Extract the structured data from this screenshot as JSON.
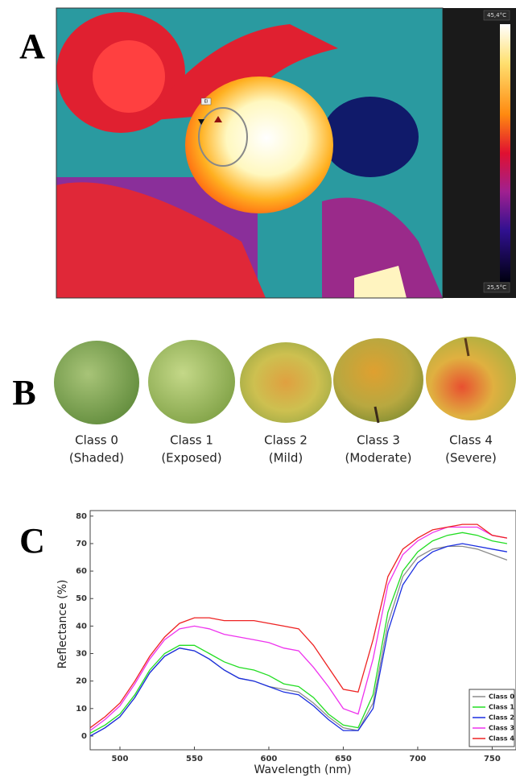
{
  "panel_a": {
    "label": "A",
    "roi_tag": "El",
    "scale_max": "45,4°C",
    "scale_min": "25,5°C"
  },
  "panel_b": {
    "label": "B",
    "classes": [
      {
        "name": "Class 0",
        "description": "(Shaded)"
      },
      {
        "name": "Class 1",
        "description": "(Exposed)"
      },
      {
        "name": "Class 2",
        "description": "(Mild)"
      },
      {
        "name": "Class 3",
        "description": "(Moderate)"
      },
      {
        "name": "Class 4",
        "description": "(Severe)"
      }
    ]
  },
  "panel_c": {
    "label": "C"
  },
  "chart_data": {
    "type": "line",
    "x_label": "Wavelength (nm)",
    "y_label": "Reflectance (%)",
    "x": [
      480,
      490,
      500,
      510,
      520,
      530,
      540,
      550,
      560,
      570,
      580,
      590,
      600,
      610,
      620,
      630,
      640,
      650,
      660,
      670,
      680,
      690,
      700,
      710,
      720,
      730,
      740,
      750,
      760
    ],
    "xlim": [
      480,
      766
    ],
    "ylim": [
      -5,
      82
    ],
    "xticks": [
      500,
      550,
      600,
      650,
      700,
      750
    ],
    "yticks": [
      0,
      10,
      20,
      30,
      40,
      50,
      60,
      70,
      80
    ],
    "legend": "lower right",
    "series": [
      {
        "name": "Class 0",
        "color": "#8c8c8c",
        "values": [
          0,
          3,
          7,
          14,
          23,
          29,
          32,
          31,
          28,
          24,
          21,
          20,
          18,
          17,
          16,
          12,
          7,
          3,
          2,
          12,
          41,
          58,
          65,
          68,
          69,
          69,
          68,
          66,
          64
        ]
      },
      {
        "name": "Class 1",
        "color": "#22dd22",
        "values": [
          1,
          4,
          8,
          15,
          24,
          30,
          33,
          33,
          30,
          27,
          25,
          24,
          22,
          19,
          18,
          14,
          8,
          4,
          3,
          15,
          45,
          60,
          67,
          71,
          73,
          74,
          73,
          71,
          70
        ]
      },
      {
        "name": "Class 2",
        "color": "#1a2ee0",
        "values": [
          0,
          3,
          7,
          14,
          23,
          29,
          32,
          31,
          28,
          24,
          21,
          20,
          18,
          16,
          15,
          11,
          6,
          2,
          2,
          10,
          38,
          55,
          63,
          67,
          69,
          70,
          69,
          68,
          67
        ]
      },
      {
        "name": "Class 3",
        "color": "#ee33ee",
        "values": [
          2,
          6,
          11,
          19,
          28,
          35,
          39,
          40,
          39,
          37,
          36,
          35,
          34,
          32,
          31,
          25,
          18,
          10,
          8,
          28,
          55,
          66,
          71,
          74,
          76,
          76,
          76,
          73,
          72
        ]
      },
      {
        "name": "Class 4",
        "color": "#ee2222",
        "values": [
          3,
          7,
          12,
          20,
          29,
          36,
          41,
          43,
          43,
          42,
          42,
          42,
          41,
          40,
          39,
          33,
          25,
          17,
          16,
          35,
          58,
          68,
          72,
          75,
          76,
          77,
          77,
          73,
          72
        ]
      }
    ]
  }
}
